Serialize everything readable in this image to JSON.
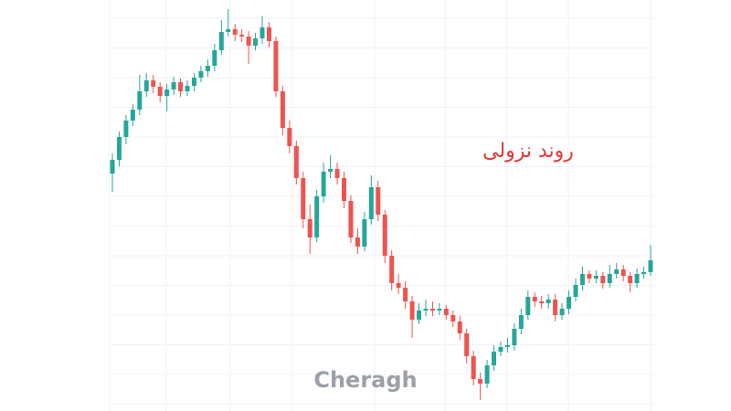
{
  "chart_data": {
    "type": "candlestick",
    "annotation": "روند نزولی",
    "watermark": "Cheragh",
    "up_color": "#26a69a",
    "down_color": "#ef5350",
    "annotation_color": "#e53935",
    "ylim": [
      0,
      450
    ],
    "open": [
      260,
      275,
      300,
      318,
      330,
      350,
      362,
      355,
      345,
      352,
      360,
      350,
      356,
      365,
      372,
      378,
      395,
      415,
      418,
      412,
      410,
      400,
      408,
      420,
      405,
      350,
      310,
      290,
      255,
      210,
      190,
      235,
      262,
      265,
      255,
      230,
      190,
      180,
      210,
      245,
      215,
      170,
      140,
      135,
      120,
      100,
      110,
      112,
      110,
      112,
      105,
      98,
      85,
      60,
      35,
      30,
      50,
      65,
      70,
      72,
      90,
      105,
      125,
      120,
      118,
      122,
      105,
      112,
      125,
      138,
      150,
      145,
      148,
      140,
      150,
      155,
      148,
      140,
      150,
      152
    ],
    "high": [
      282,
      306,
      324,
      336,
      368,
      370,
      368,
      360,
      358,
      366,
      364,
      362,
      370,
      378,
      385,
      402,
      428,
      440,
      424,
      418,
      416,
      414,
      432,
      426,
      410,
      356,
      318,
      296,
      262,
      226,
      242,
      272,
      280,
      272,
      262,
      236,
      200,
      218,
      258,
      252,
      220,
      176,
      150,
      142,
      126,
      118,
      122,
      120,
      118,
      116,
      110,
      104,
      90,
      66,
      42,
      56,
      72,
      76,
      80,
      96,
      112,
      132,
      130,
      126,
      128,
      128,
      118,
      132,
      145,
      158,
      154,
      154,
      152,
      160,
      162,
      160,
      152,
      156,
      158,
      182
    ],
    "low": [
      240,
      268,
      292,
      312,
      324,
      344,
      348,
      338,
      328,
      346,
      344,
      345,
      350,
      360,
      366,
      372,
      390,
      410,
      405,
      404,
      380,
      395,
      402,
      398,
      344,
      302,
      282,
      248,
      200,
      172,
      185,
      228,
      255,
      248,
      222,
      184,
      172,
      175,
      204,
      208,
      162,
      132,
      128,
      112,
      80,
      95,
      104,
      104,
      105,
      100,
      92,
      78,
      52,
      28,
      12,
      25,
      44,
      60,
      64,
      66,
      84,
      100,
      114,
      112,
      112,
      98,
      100,
      106,
      120,
      132,
      140,
      140,
      134,
      135,
      145,
      142,
      130,
      135,
      145,
      148
    ],
    "close": [
      275,
      300,
      318,
      330,
      350,
      362,
      355,
      345,
      352,
      360,
      350,
      356,
      365,
      372,
      378,
      395,
      415,
      418,
      412,
      410,
      400,
      408,
      420,
      405,
      350,
      310,
      290,
      255,
      210,
      190,
      235,
      262,
      265,
      255,
      230,
      190,
      180,
      210,
      245,
      215,
      170,
      140,
      135,
      120,
      100,
      110,
      112,
      110,
      112,
      105,
      98,
      85,
      60,
      35,
      30,
      50,
      65,
      70,
      72,
      90,
      105,
      125,
      120,
      118,
      122,
      105,
      112,
      125,
      138,
      150,
      145,
      148,
      140,
      150,
      155,
      148,
      140,
      150,
      152,
      165
    ]
  }
}
